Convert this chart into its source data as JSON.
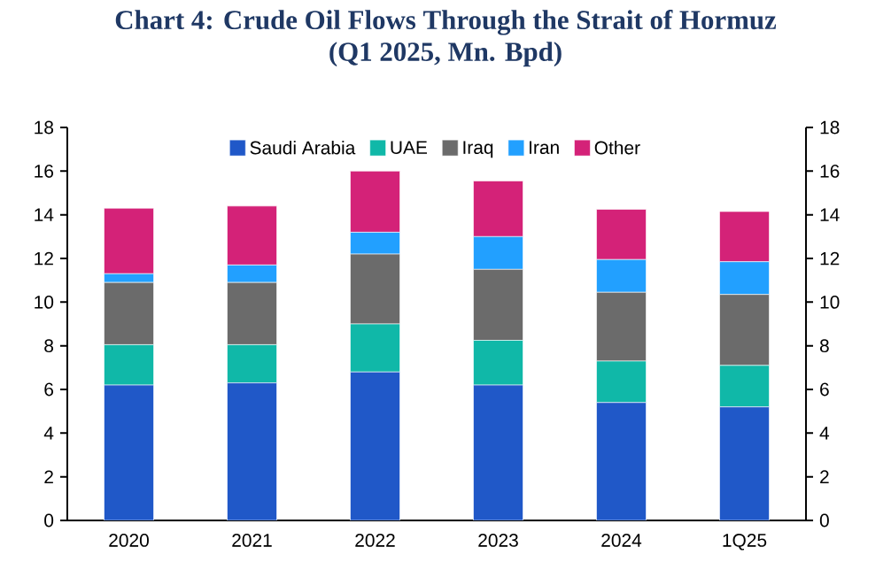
{
  "chart_data": {
    "type": "bar",
    "title": "Chart 4: Crude Oil Flows Through the Strait of Hormuz",
    "subtitle": "(Q1 2025, Mn. Bpd)",
    "categories": [
      "2020",
      "2021",
      "2022",
      "2023",
      "2024",
      "1Q25"
    ],
    "stacked": true,
    "series": [
      {
        "name": "Saudi Arabia",
        "color": "#2058c8",
        "values": [
          6.2,
          6.3,
          6.8,
          6.2,
          5.4,
          5.2
        ]
      },
      {
        "name": "UAE",
        "color": "#10b8a8",
        "values": [
          1.85,
          1.75,
          2.2,
          2.05,
          1.9,
          1.9
        ]
      },
      {
        "name": "Iraq",
        "color": "#6b6b6b",
        "values": [
          2.85,
          2.85,
          3.2,
          3.25,
          3.15,
          3.25
        ]
      },
      {
        "name": "Iran",
        "color": "#22a0ff",
        "values": [
          0.4,
          0.8,
          1.0,
          1.5,
          1.5,
          1.5
        ]
      },
      {
        "name": "Other",
        "color": "#d42278",
        "values": [
          3.0,
          2.7,
          2.8,
          2.55,
          2.3,
          2.3
        ]
      }
    ],
    "ylim": [
      0,
      18
    ],
    "yticks": [
      0,
      2,
      4,
      6,
      8,
      10,
      12,
      14,
      16,
      18
    ],
    "y2lim": [
      0,
      18
    ],
    "y2ticks": [
      0,
      2,
      4,
      6,
      8,
      10,
      12,
      14,
      16,
      18
    ],
    "legend": "top",
    "grid": false
  }
}
